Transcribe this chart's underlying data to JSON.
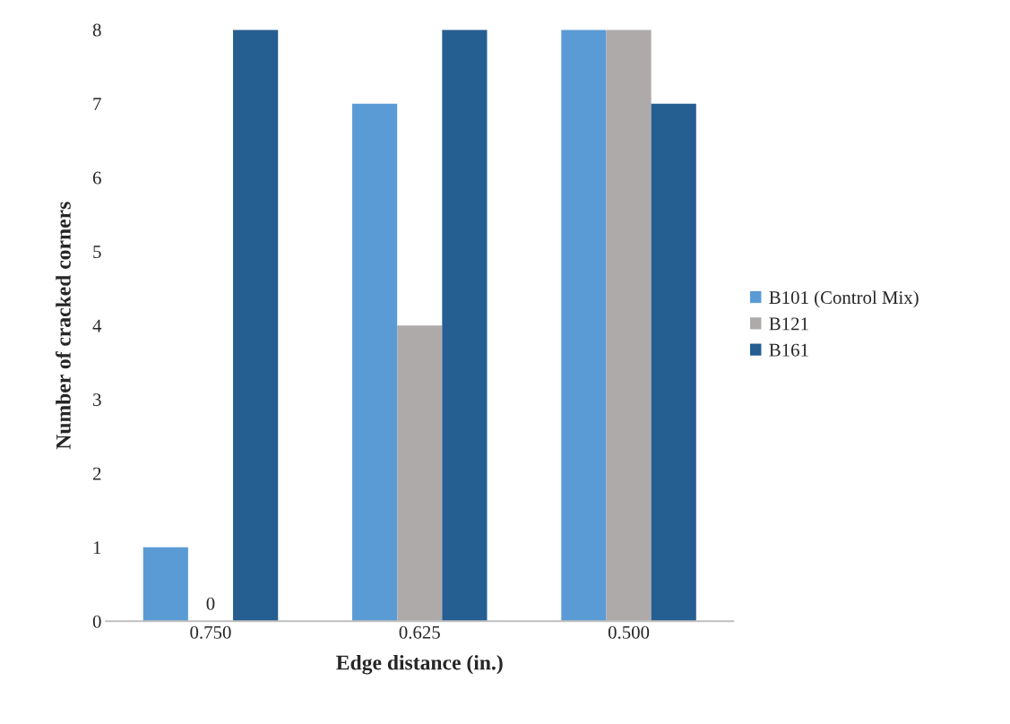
{
  "chart_data": {
    "type": "bar",
    "xlabel": "Edge distance (in.)",
    "ylabel": "Number of cracked corners",
    "categories": [
      "0.750",
      "0.625",
      "0.500"
    ],
    "series": [
      {
        "name": "B101 (Control Mix)",
        "color": "#5b9bd5",
        "values": [
          1,
          7,
          8
        ]
      },
      {
        "name": "B121",
        "color": "#aeaaaa",
        "values": [
          0,
          4,
          8
        ],
        "value_labels": [
          "0",
          null,
          null
        ]
      },
      {
        "name": "B161",
        "color": "#255e91",
        "values": [
          8,
          8,
          7
        ]
      }
    ],
    "ylim": [
      0,
      8
    ],
    "yticks": [
      0,
      1,
      2,
      3,
      4,
      5,
      6,
      7,
      8
    ],
    "grid": false,
    "legend": "right"
  }
}
